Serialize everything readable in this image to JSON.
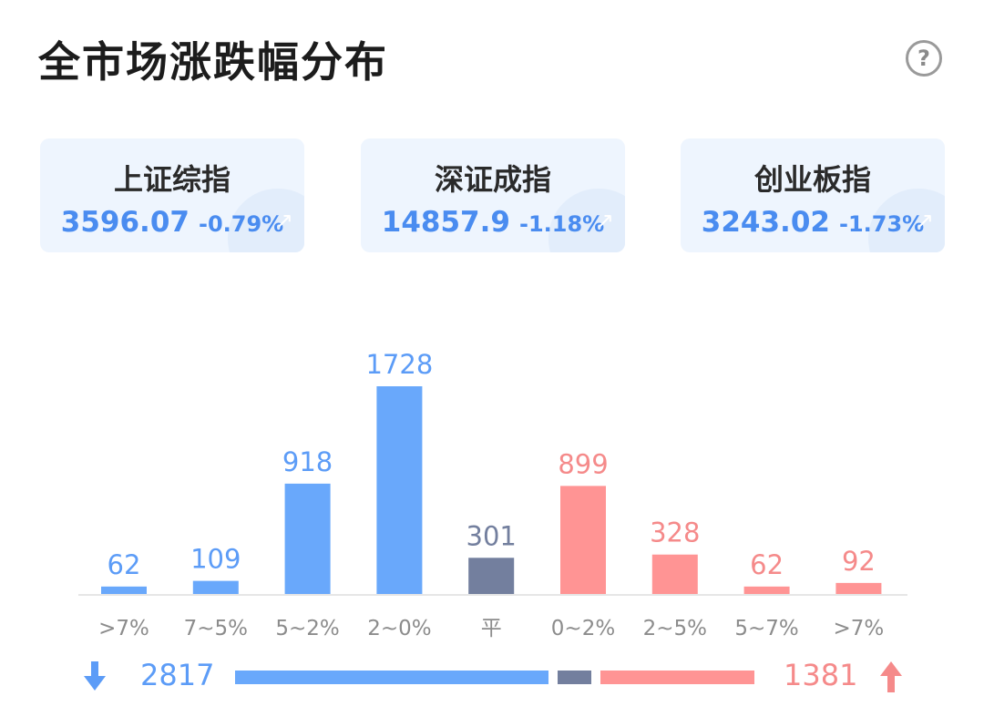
{
  "header": {
    "title": "全市场涨跌幅分布",
    "help_glyph": "?"
  },
  "indices": [
    {
      "name": "上证综指",
      "price": "3596.07",
      "change": "-0.79%"
    },
    {
      "name": "深证成指",
      "price": "14857.9",
      "change": "-1.18%"
    },
    {
      "name": "创业板指",
      "price": "3243.02",
      "change": "-1.73%"
    }
  ],
  "colors": {
    "down": "#69a8fb",
    "flat": "#737f9e",
    "up": "#ff9494",
    "down_text": "#5c9cf7",
    "up_text": "#f58a8a",
    "axis_text": "#8c8c8c"
  },
  "chart_data": {
    "type": "bar",
    "categories": [
      ">7%",
      "7~5%",
      "5~2%",
      "2~0%",
      "平",
      "0~2%",
      "2~5%",
      "5~7%",
      ">7%"
    ],
    "values": [
      62,
      109,
      918,
      1728,
      301,
      899,
      328,
      62,
      92
    ],
    "category_groups": [
      "down",
      "down",
      "down",
      "down",
      "flat",
      "up",
      "up",
      "up",
      "up"
    ]
  },
  "summary": {
    "down_total": "2817",
    "up_total": "1381",
    "flat_total": 301,
    "down_icon": "arrow-down-icon",
    "up_icon": "arrow-up-icon"
  }
}
